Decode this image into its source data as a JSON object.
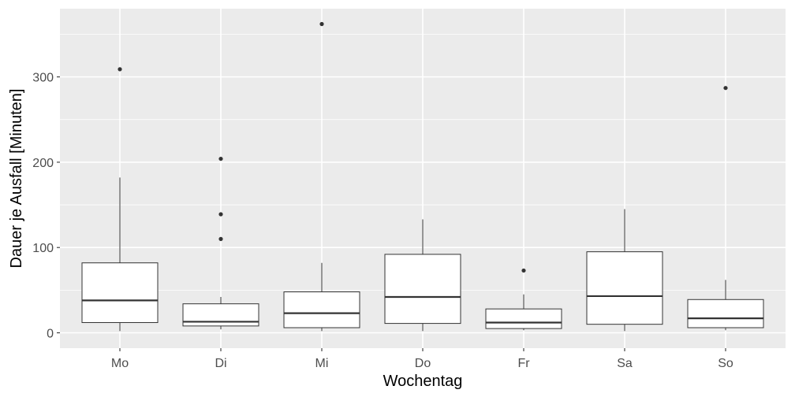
{
  "chart_data": {
    "type": "boxplot",
    "title": "",
    "xlabel": "Wochentag",
    "ylabel": "Dauer je Ausfall [Minuten]",
    "categories": [
      "Mo",
      "Di",
      "Mi",
      "Do",
      "Fr",
      "Sa",
      "So"
    ],
    "ylim": [
      -18,
      380
    ],
    "yticks": [
      0,
      100,
      200,
      300
    ],
    "ytick_labels": [
      "0",
      "100",
      "200",
      "300"
    ],
    "grid": true,
    "legend": "none",
    "boxes": [
      {
        "category": "Mo",
        "whisker_low": 2,
        "q1": 12,
        "median": 38,
        "q3": 82,
        "whisker_high": 182,
        "outliers": [
          309
        ]
      },
      {
        "category": "Di",
        "whisker_low": 4,
        "q1": 8,
        "median": 13,
        "q3": 34,
        "whisker_high": 42,
        "outliers": [
          110,
          139,
          204
        ]
      },
      {
        "category": "Mi",
        "whisker_low": 2,
        "q1": 6,
        "median": 23,
        "q3": 48,
        "whisker_high": 82,
        "outliers": [
          362
        ]
      },
      {
        "category": "Do",
        "whisker_low": 2,
        "q1": 11,
        "median": 42,
        "q3": 92,
        "whisker_high": 133,
        "outliers": []
      },
      {
        "category": "Fr",
        "whisker_low": 3,
        "q1": 5,
        "median": 12,
        "q3": 28,
        "whisker_high": 45,
        "outliers": [
          73
        ]
      },
      {
        "category": "Sa",
        "whisker_low": 2,
        "q1": 10,
        "median": 43,
        "q3": 95,
        "whisker_high": 145,
        "outliers": []
      },
      {
        "category": "So",
        "whisker_low": 3,
        "q1": 6,
        "median": 17,
        "q3": 39,
        "whisker_high": 62,
        "outliers": [
          287
        ]
      }
    ],
    "colors": {
      "panel": "#ebebeb",
      "grid": "#ffffff",
      "box_fill": "#ffffff",
      "box_line": "#333333",
      "tick": "#333333"
    }
  }
}
